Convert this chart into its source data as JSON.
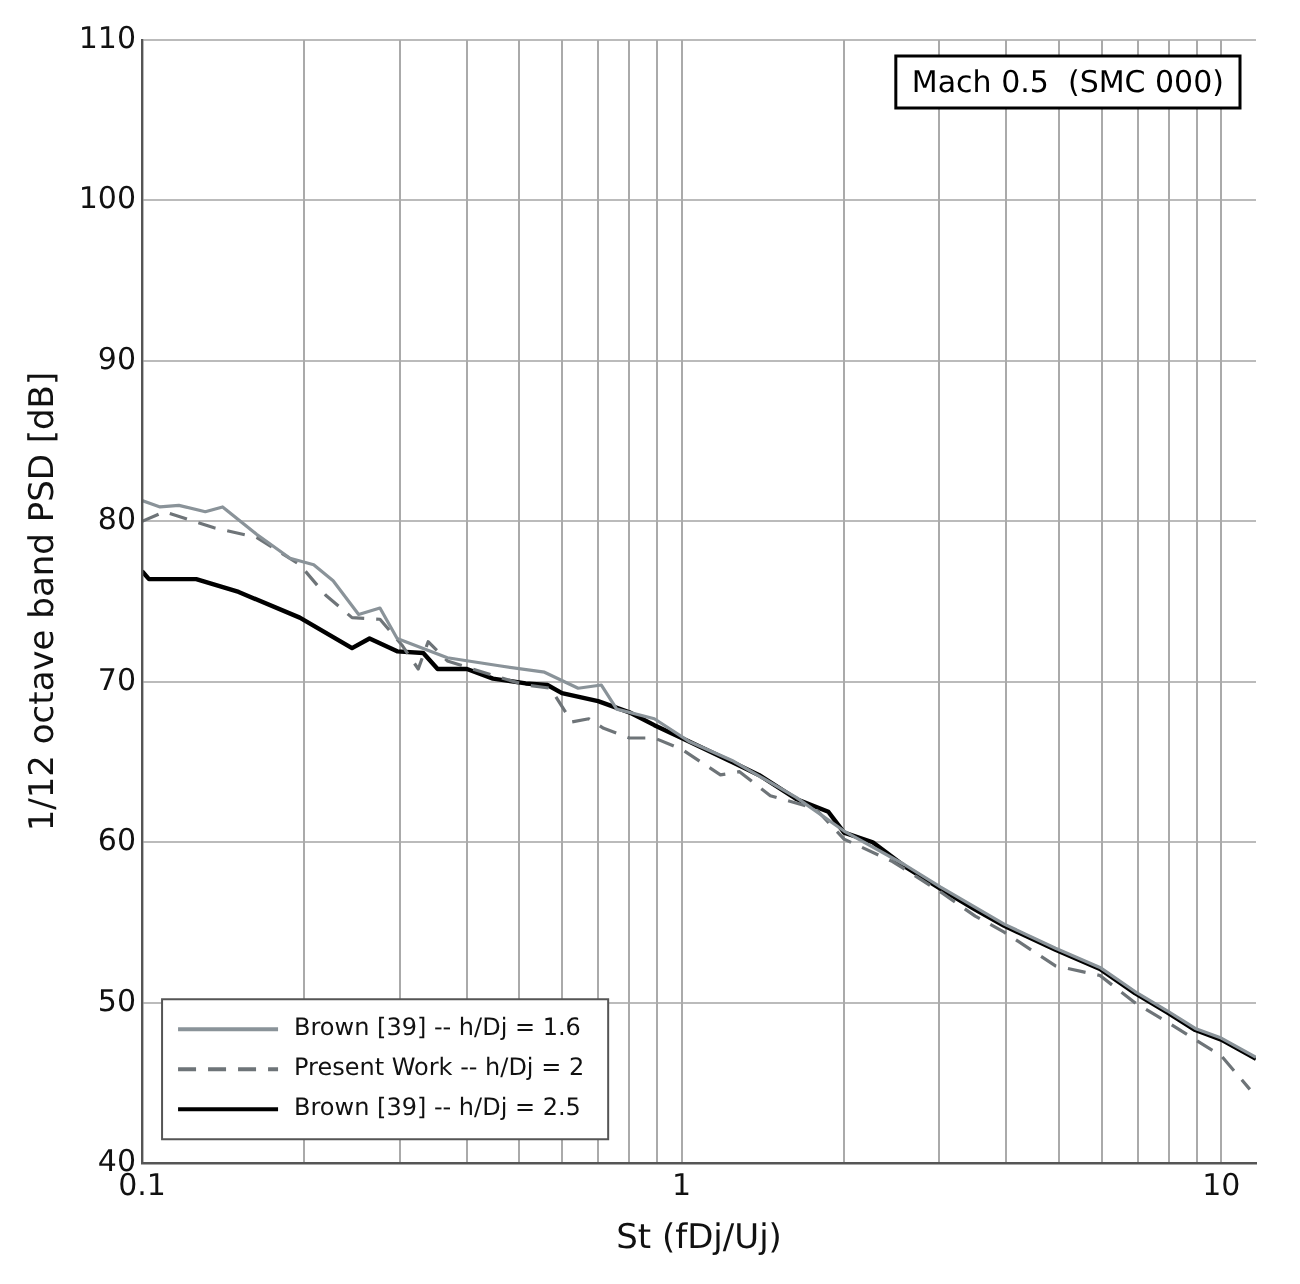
{
  "chart_data": {
    "type": "line",
    "xlabel": "St (fDj/Uj)",
    "ylabel": "1/12 octave band PSD [dB]",
    "annotations": [
      "Mach 0.5  (SMC 000)"
    ],
    "log": "x",
    "grid": true,
    "legend": "bottom left",
    "marker": "none",
    "xlim": [
      0.1,
      11.6
    ],
    "ylim": [
      40,
      110
    ],
    "xticks": [
      0.1,
      {
        "value": 0.2,
        "label": null
      },
      {
        "value": 0.3,
        "label": null
      },
      {
        "value": 0.4,
        "label": null
      },
      {
        "value": 0.5,
        "label": null
      },
      {
        "value": 0.6,
        "label": null
      },
      {
        "value": 0.7,
        "label": null
      },
      {
        "value": 0.8,
        "label": null
      },
      {
        "value": 0.9,
        "label": null
      },
      1,
      {
        "value": 2,
        "label": null
      },
      {
        "value": 3,
        "label": null
      },
      {
        "value": 4,
        "label": null
      },
      {
        "value": 5,
        "label": null
      },
      {
        "value": 6,
        "label": null
      },
      {
        "value": 7,
        "label": null
      },
      {
        "value": 8,
        "label": null
      },
      {
        "value": 9,
        "label": null
      },
      10
    ],
    "yticks": [
      40,
      50,
      60,
      70,
      80,
      90,
      100,
      110
    ],
    "series": [
      {
        "name": "Brown [39] -- h/Dj = 1.6",
        "color": "#8a9399",
        "line_style": "solid",
        "x": [
          0.1,
          0.108,
          0.117,
          0.131,
          0.141,
          0.163,
          0.188,
          0.208,
          0.226,
          0.252,
          0.276,
          0.297,
          0.368,
          0.459,
          0.557,
          0.643,
          0.71,
          0.758,
          0.89,
          1.03,
          1.24,
          1.63,
          2.0,
          2.59,
          3.02,
          3.96,
          4.93,
          5.96,
          6.92,
          7.94,
          8.95,
          10,
          11.6
        ],
        "values": [
          81.3,
          80.9,
          81.0,
          80.6,
          80.9,
          79.2,
          77.7,
          77.3,
          76.3,
          74.2,
          74.6,
          72.7,
          71.5,
          71.0,
          70.6,
          69.6,
          69.8,
          68.3,
          67.7,
          66.3,
          65.1,
          62.8,
          60.7,
          58.6,
          57.2,
          54.9,
          53.4,
          52.2,
          50.7,
          49.5,
          48.4,
          47.8,
          46.6
        ]
      },
      {
        "name": "Present Work -- h/Dj = 2",
        "color": "#6e7478",
        "line_style": "dashed",
        "x": [
          0.1,
          0.11,
          0.136,
          0.163,
          0.196,
          0.219,
          0.245,
          0.276,
          0.303,
          0.325,
          0.339,
          0.368,
          0.447,
          0.514,
          0.571,
          0.626,
          0.673,
          0.717,
          0.8,
          0.89,
          1.0,
          1.18,
          1.28,
          1.46,
          1.77,
          2.0,
          2.46,
          3.02,
          3.5,
          3.96,
          4.93,
          5.96,
          6.92,
          7.94,
          8.95,
          10,
          11.3
        ],
        "values": [
          80.0,
          80.6,
          79.6,
          79.0,
          77.3,
          75.4,
          74.0,
          73.9,
          72.3,
          70.8,
          72.5,
          71.3,
          70.4,
          69.8,
          69.6,
          67.5,
          67.7,
          67.1,
          66.5,
          66.5,
          65.8,
          64.2,
          64.4,
          62.9,
          62.1,
          60.2,
          58.8,
          56.9,
          55.4,
          54.4,
          52.3,
          51.7,
          50.0,
          48.8,
          47.7,
          46.7,
          44.6
        ]
      },
      {
        "name": "Brown [39] -- h/Dj = 2.5",
        "color": "#000000",
        "line_style": "solid",
        "x": [
          0.1,
          0.103,
          0.126,
          0.151,
          0.196,
          0.245,
          0.264,
          0.297,
          0.332,
          0.353,
          0.4,
          0.447,
          0.514,
          0.564,
          0.6,
          0.7,
          0.8,
          0.89,
          1.0,
          1.24,
          1.39,
          1.63,
          1.87,
          2.0,
          2.26,
          2.59,
          3.02,
          3.5,
          3.96,
          4.93,
          5.96,
          6.92,
          7.94,
          8.95,
          10,
          11.6
        ],
        "values": [
          76.9,
          76.4,
          76.4,
          75.6,
          74.0,
          72.1,
          72.7,
          71.9,
          71.8,
          70.8,
          70.8,
          70.2,
          69.9,
          69.8,
          69.3,
          68.8,
          68.1,
          67.3,
          66.5,
          65.0,
          64.2,
          62.7,
          61.9,
          60.6,
          60.0,
          58.5,
          57.1,
          55.8,
          54.8,
          53.3,
          52.1,
          50.6,
          49.4,
          48.3,
          47.7,
          46.5
        ]
      }
    ]
  }
}
